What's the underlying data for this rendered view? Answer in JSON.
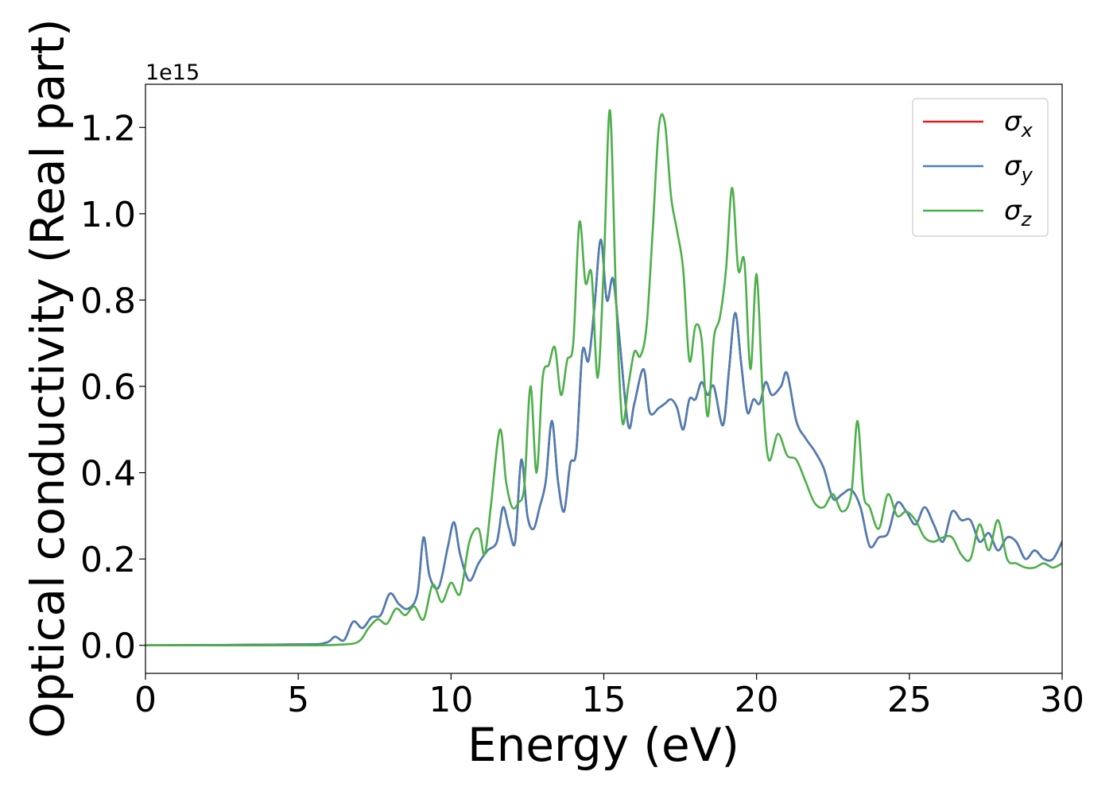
{
  "chart_data": {
    "type": "line",
    "xlabel": "Energy (eV)",
    "ylabel": "Optical conductivity (Real part)",
    "y_offset_label": "1e15",
    "xlim": [
      0,
      30
    ],
    "ylim": [
      -0.065,
      1.3
    ],
    "x_ticks": [
      0,
      5,
      10,
      15,
      20,
      25,
      30
    ],
    "x_tick_labels": [
      "0",
      "5",
      "10",
      "15",
      "20",
      "25",
      "30"
    ],
    "y_ticks": [
      0.0,
      0.2,
      0.4,
      0.6,
      0.8,
      1.0,
      1.2
    ],
    "y_tick_labels": [
      "0.0",
      "0.2",
      "0.4",
      "0.6",
      "0.8",
      "1.0",
      "1.2"
    ],
    "grid": false,
    "legend_position": "top-right",
    "series": [
      {
        "name": "σx",
        "symbol": "σ",
        "subscript": "x",
        "color": "#e41a1c",
        "x": [
          0,
          5,
          5.9,
          6.2,
          6.5,
          6.8,
          7.1,
          7.4,
          7.7,
          8.0,
          8.3,
          8.6,
          8.9,
          9.1,
          9.3,
          9.6,
          9.9,
          10.1,
          10.3,
          10.6,
          10.9,
          11.2,
          11.5,
          11.7,
          11.9,
          12.1,
          12.3,
          12.5,
          12.7,
          12.9,
          13.1,
          13.3,
          13.5,
          13.7,
          13.9,
          14.1,
          14.3,
          14.5,
          14.7,
          14.9,
          15.1,
          15.3,
          15.5,
          15.8,
          16.0,
          16.3,
          16.5,
          16.8,
          17.0,
          17.2,
          17.4,
          17.6,
          17.8,
          18.0,
          18.2,
          18.4,
          18.6,
          18.9,
          19.1,
          19.3,
          19.5,
          19.7,
          19.9,
          20.1,
          20.3,
          20.5,
          20.8,
          21.0,
          21.3,
          21.6,
          21.9,
          22.2,
          22.5,
          22.8,
          23.1,
          23.4,
          23.7,
          24.0,
          24.3,
          24.6,
          24.9,
          25.2,
          25.5,
          25.8,
          26.1,
          26.4,
          26.7,
          27.0,
          27.3,
          27.6,
          27.9,
          28.2,
          28.5,
          28.8,
          29.1,
          29.4,
          29.7,
          30.0
        ],
        "y": [
          0.0,
          0.002,
          0.006,
          0.02,
          0.012,
          0.055,
          0.04,
          0.065,
          0.07,
          0.12,
          0.095,
          0.085,
          0.12,
          0.25,
          0.16,
          0.135,
          0.23,
          0.285,
          0.21,
          0.15,
          0.19,
          0.22,
          0.24,
          0.32,
          0.27,
          0.24,
          0.43,
          0.3,
          0.27,
          0.32,
          0.38,
          0.52,
          0.38,
          0.31,
          0.42,
          0.45,
          0.68,
          0.66,
          0.79,
          0.94,
          0.8,
          0.85,
          0.72,
          0.51,
          0.56,
          0.64,
          0.54,
          0.55,
          0.56,
          0.57,
          0.55,
          0.5,
          0.57,
          0.57,
          0.61,
          0.58,
          0.6,
          0.51,
          0.64,
          0.77,
          0.65,
          0.54,
          0.57,
          0.56,
          0.61,
          0.58,
          0.6,
          0.63,
          0.52,
          0.48,
          0.45,
          0.41,
          0.34,
          0.35,
          0.36,
          0.32,
          0.23,
          0.25,
          0.26,
          0.33,
          0.31,
          0.28,
          0.32,
          0.28,
          0.24,
          0.31,
          0.29,
          0.29,
          0.24,
          0.26,
          0.22,
          0.25,
          0.24,
          0.2,
          0.22,
          0.2,
          0.2,
          0.24
        ]
      },
      {
        "name": "σy",
        "symbol": "σ",
        "subscript": "y",
        "color": "#4a7fb5",
        "x": [
          0,
          5,
          5.9,
          6.2,
          6.5,
          6.8,
          7.1,
          7.4,
          7.7,
          8.0,
          8.3,
          8.6,
          8.9,
          9.1,
          9.3,
          9.6,
          9.9,
          10.1,
          10.3,
          10.6,
          10.9,
          11.2,
          11.5,
          11.7,
          11.9,
          12.1,
          12.3,
          12.5,
          12.7,
          12.9,
          13.1,
          13.3,
          13.5,
          13.7,
          13.9,
          14.1,
          14.3,
          14.5,
          14.7,
          14.9,
          15.1,
          15.3,
          15.5,
          15.8,
          16.0,
          16.3,
          16.5,
          16.8,
          17.0,
          17.2,
          17.4,
          17.6,
          17.8,
          18.0,
          18.2,
          18.4,
          18.6,
          18.9,
          19.1,
          19.3,
          19.5,
          19.7,
          19.9,
          20.1,
          20.3,
          20.5,
          20.8,
          21.0,
          21.3,
          21.6,
          21.9,
          22.2,
          22.5,
          22.8,
          23.1,
          23.4,
          23.7,
          24.0,
          24.3,
          24.6,
          24.9,
          25.2,
          25.5,
          25.8,
          26.1,
          26.4,
          26.7,
          27.0,
          27.3,
          27.6,
          27.9,
          28.2,
          28.5,
          28.8,
          29.1,
          29.4,
          29.7,
          30.0
        ],
        "y": [
          0.0,
          0.002,
          0.006,
          0.02,
          0.012,
          0.055,
          0.04,
          0.065,
          0.07,
          0.12,
          0.095,
          0.085,
          0.12,
          0.25,
          0.16,
          0.135,
          0.23,
          0.285,
          0.21,
          0.15,
          0.19,
          0.22,
          0.24,
          0.32,
          0.27,
          0.24,
          0.43,
          0.3,
          0.27,
          0.32,
          0.38,
          0.52,
          0.38,
          0.31,
          0.42,
          0.45,
          0.68,
          0.66,
          0.79,
          0.94,
          0.8,
          0.85,
          0.72,
          0.51,
          0.56,
          0.64,
          0.54,
          0.55,
          0.56,
          0.57,
          0.55,
          0.5,
          0.57,
          0.57,
          0.61,
          0.58,
          0.6,
          0.51,
          0.64,
          0.77,
          0.65,
          0.54,
          0.57,
          0.56,
          0.61,
          0.58,
          0.6,
          0.63,
          0.52,
          0.48,
          0.45,
          0.41,
          0.34,
          0.35,
          0.36,
          0.32,
          0.23,
          0.25,
          0.26,
          0.33,
          0.31,
          0.28,
          0.32,
          0.28,
          0.24,
          0.31,
          0.29,
          0.29,
          0.24,
          0.26,
          0.22,
          0.25,
          0.24,
          0.2,
          0.22,
          0.2,
          0.2,
          0.24
        ]
      },
      {
        "name": "σz",
        "symbol": "σ",
        "subscript": "z",
        "color": "#4daf4a",
        "x": [
          0,
          5,
          6.5,
          7.0,
          7.3,
          7.6,
          7.9,
          8.2,
          8.5,
          8.8,
          9.1,
          9.4,
          9.7,
          10.0,
          10.3,
          10.6,
          10.9,
          11.1,
          11.3,
          11.6,
          11.8,
          12.0,
          12.2,
          12.4,
          12.6,
          12.8,
          13.0,
          13.2,
          13.4,
          13.6,
          13.8,
          14.0,
          14.2,
          14.4,
          14.6,
          14.8,
          15.0,
          15.2,
          15.4,
          15.6,
          15.8,
          16.0,
          16.2,
          16.4,
          16.6,
          16.8,
          17.0,
          17.2,
          17.4,
          17.6,
          17.8,
          18.0,
          18.2,
          18.4,
          18.6,
          18.8,
          19.0,
          19.2,
          19.4,
          19.6,
          19.8,
          20.0,
          20.2,
          20.4,
          20.7,
          21.0,
          21.3,
          21.6,
          21.9,
          22.2,
          22.5,
          22.8,
          23.1,
          23.3,
          23.5,
          23.7,
          24.0,
          24.3,
          24.6,
          24.9,
          25.2,
          25.5,
          25.8,
          26.1,
          26.4,
          26.7,
          27.0,
          27.3,
          27.6,
          27.9,
          28.2,
          28.5,
          28.8,
          29.1,
          29.4,
          29.7,
          30.0
        ],
        "y": [
          0.0,
          0.0,
          0.002,
          0.01,
          0.04,
          0.06,
          0.05,
          0.085,
          0.07,
          0.09,
          0.06,
          0.14,
          0.1,
          0.145,
          0.12,
          0.24,
          0.27,
          0.21,
          0.32,
          0.5,
          0.38,
          0.32,
          0.33,
          0.37,
          0.6,
          0.4,
          0.62,
          0.65,
          0.69,
          0.58,
          0.66,
          0.7,
          0.98,
          0.84,
          0.86,
          0.62,
          0.88,
          1.24,
          0.81,
          0.52,
          0.6,
          0.68,
          0.67,
          0.74,
          0.96,
          1.2,
          1.21,
          1.04,
          0.96,
          0.87,
          0.66,
          0.74,
          0.71,
          0.53,
          0.71,
          0.76,
          0.87,
          1.06,
          0.87,
          0.89,
          0.64,
          0.86,
          0.58,
          0.43,
          0.49,
          0.44,
          0.43,
          0.38,
          0.33,
          0.32,
          0.35,
          0.31,
          0.35,
          0.52,
          0.35,
          0.32,
          0.27,
          0.35,
          0.3,
          0.31,
          0.29,
          0.25,
          0.24,
          0.25,
          0.25,
          0.21,
          0.2,
          0.28,
          0.22,
          0.29,
          0.2,
          0.19,
          0.18,
          0.18,
          0.19,
          0.18,
          0.19
        ]
      }
    ]
  }
}
